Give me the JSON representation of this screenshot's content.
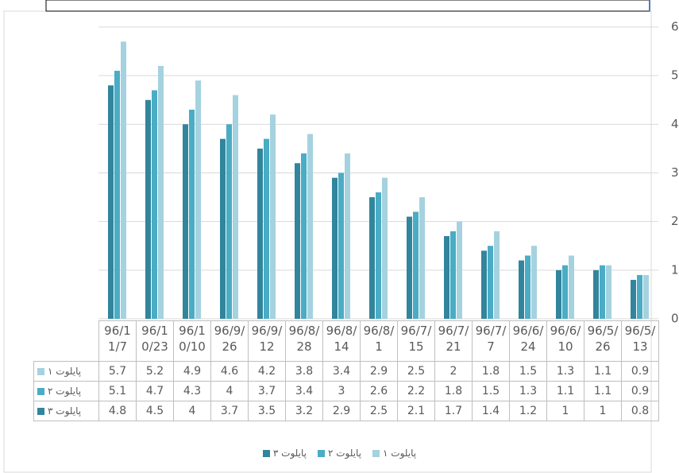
{
  "chart_data": {
    "type": "bar",
    "categories": [
      "96/11/7",
      "96/10/23",
      "96/10/10",
      "96/9/26",
      "96/9/12",
      "96/8/28",
      "96/8/14",
      "96/8/1",
      "96/7/15",
      "96/7/21",
      "96/7/7",
      "96/6/24",
      "96/6/10",
      "96/5/26",
      "96/5/13"
    ],
    "series": [
      {
        "name": "پایلوت ۱",
        "color": "#a5d2df",
        "values": [
          5.7,
          5.2,
          4.9,
          4.6,
          4.2,
          3.8,
          3.4,
          2.9,
          2.5,
          2,
          1.8,
          1.5,
          1.3,
          1.1,
          0.9
        ]
      },
      {
        "name": "پایلوت ۲",
        "color": "#4aacc5",
        "values": [
          5.1,
          4.7,
          4.3,
          4,
          3.7,
          3.4,
          3,
          2.6,
          2.2,
          1.8,
          1.5,
          1.3,
          1.1,
          1.1,
          0.9
        ]
      },
      {
        "name": "پایلوت ۳",
        "color": "#31859c",
        "values": [
          4.8,
          4.5,
          4,
          3.7,
          3.5,
          3.2,
          2.9,
          2.5,
          2.1,
          1.7,
          1.4,
          1.2,
          1,
          1,
          0.8
        ]
      }
    ],
    "ylim": [
      0,
      6
    ],
    "yticks": [
      0,
      1,
      2,
      3,
      4,
      5,
      6
    ],
    "grid": true
  }
}
